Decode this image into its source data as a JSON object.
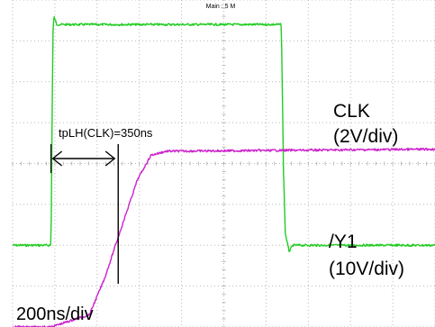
{
  "chart_data": {
    "type": "line",
    "timebase_label": "Main : 5 M",
    "time_per_div_label": "200ns/div",
    "annotation": "tpLH(CLK)=350ns",
    "x_unit": "ns",
    "x_range": [
      -200,
      2000
    ],
    "grid": true,
    "series": [
      {
        "name": "CLK",
        "scale_label": "(2V/div)",
        "color": "#22cc22",
        "y_range_div": [
          0,
          8
        ],
        "x": [
          -200,
          0,
          10,
          15,
          30,
          1200,
          1210,
          1220,
          1240,
          1260,
          2000
        ],
        "y": [
          2.0,
          2.0,
          7.2,
          7.6,
          7.4,
          7.4,
          4.0,
          2.3,
          1.85,
          2.0,
          2.0
        ]
      },
      {
        "name": "/Y1",
        "scale_label": "(10V/div)",
        "color": "#cc22cc",
        "y_range_div": [
          0,
          8
        ],
        "x": [
          -200,
          0,
          200,
          280,
          350,
          450,
          520,
          600,
          2000
        ],
        "y": [
          0.0,
          0.0,
          0.3,
          1.2,
          2.2,
          3.6,
          4.2,
          4.3,
          4.35
        ]
      }
    ],
    "markers": {
      "start_x": 0,
      "end_x": 350
    }
  }
}
